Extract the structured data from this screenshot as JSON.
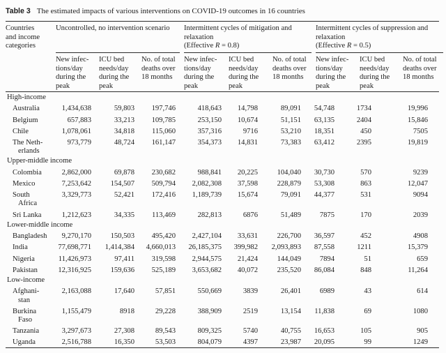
{
  "table": {
    "label": "Table 3",
    "caption": "The estimated impacts of various interventions on COVID-19 outcomes in 16 countries",
    "row_header": {
      "lines": [
        "Countries",
        "and income",
        "categories"
      ]
    },
    "groups": [
      {
        "title_lines": [
          "Uncontrolled, no intervention scenario"
        ],
        "effective": null
      },
      {
        "title_lines": [
          "Intermittent cycles of mitigation and",
          "relaxation"
        ],
        "effective": {
          "prefix": "(Effective ",
          "symbol": "R",
          "suffix": " = 0.8)"
        }
      },
      {
        "title_lines": [
          "Intermittent cycles of suppression and",
          "relaxation"
        ],
        "effective": {
          "prefix": "(Effective ",
          "symbol": "R",
          "suffix": " = 0.5)"
        }
      }
    ],
    "subcolumns": [
      {
        "key": "new-infections",
        "lines": [
          "New infec-",
          "tions/day",
          "during the",
          "peak"
        ]
      },
      {
        "key": "icu-bed-needs",
        "lines": [
          "ICU bed",
          "needs/day",
          "during the",
          "peak"
        ]
      },
      {
        "key": "total-deaths",
        "lines": [
          "No. of total",
          "deaths over",
          "18 months"
        ]
      }
    ],
    "sections": [
      {
        "label": "High-income",
        "rows": [
          {
            "country_lines": [
              "Australia"
            ],
            "values": [
              "1,434,638",
              "59,803",
              "197,746",
              "418,643",
              "14,798",
              "89,091",
              "54,748",
              "1734",
              "19,996"
            ]
          },
          {
            "country_lines": [
              "Belgium"
            ],
            "values": [
              "657,883",
              "33,213",
              "109,785",
              "253,150",
              "10,674",
              "51,151",
              "63,135",
              "2404",
              "15,846"
            ]
          },
          {
            "country_lines": [
              "Chile"
            ],
            "values": [
              "1,078,061",
              "34,818",
              "115,060",
              "357,316",
              "9716",
              "53,210",
              "18,351",
              "450",
              "7505"
            ]
          },
          {
            "country_lines": [
              "The Neth-",
              "erlands"
            ],
            "values": [
              "973,779",
              "48,724",
              "161,147",
              "354,373",
              "14,831",
              "73,383",
              "63,412",
              "2395",
              "19,819"
            ]
          }
        ]
      },
      {
        "label": "Upper-middle income",
        "rows": [
          {
            "country_lines": [
              "Colombia"
            ],
            "values": [
              "2,862,000",
              "69,878",
              "230,682",
              "988,841",
              "20,225",
              "104,040",
              "30,730",
              "570",
              "9239"
            ]
          },
          {
            "country_lines": [
              "Mexico"
            ],
            "values": [
              "7,253,642",
              "154,507",
              "509,794",
              "2,082,308",
              "37,598",
              "228,879",
              "53,308",
              "863",
              "12,047"
            ]
          },
          {
            "country_lines": [
              "South",
              "Africa"
            ],
            "values": [
              "3,329,773",
              "52,421",
              "172,416",
              "1,189,739",
              "15,674",
              "79,091",
              "44,377",
              "531",
              "9094"
            ]
          },
          {
            "country_lines": [
              "Sri Lanka"
            ],
            "values": [
              "1,212,623",
              "34,335",
              "113,469",
              "282,813",
              "6876",
              "51,489",
              "7875",
              "170",
              "2039"
            ]
          }
        ]
      },
      {
        "label": "Lower-middle income",
        "rows": [
          {
            "country_lines": [
              "Bangladesh"
            ],
            "values": [
              "9,270,170",
              "150,503",
              "495,420",
              "2,427,104",
              "33,631",
              "226,700",
              "36,597",
              "452",
              "4908"
            ]
          },
          {
            "country_lines": [
              "India"
            ],
            "values": [
              "77,698,771",
              "1,414,384",
              "4,660,013",
              "26,185,375",
              "399,982",
              "2,093,893",
              "87,558",
              "1211",
              "15,379"
            ]
          },
          {
            "country_lines": [
              "Nigeria"
            ],
            "values": [
              "11,426,973",
              "97,411",
              "319,598",
              "2,944,575",
              "21,424",
              "144,049",
              "7894",
              "51",
              "659"
            ]
          },
          {
            "country_lines": [
              "Pakistan"
            ],
            "values": [
              "12,316,925",
              "159,636",
              "525,189",
              "3,653,682",
              "40,072",
              "235,520",
              "86,084",
              "848",
              "11,264"
            ]
          }
        ]
      },
      {
        "label": "Low-income",
        "rows": [
          {
            "country_lines": [
              "Afghani-",
              "stan"
            ],
            "values": [
              "2,163,088",
              "17,640",
              "57,851",
              "550,669",
              "3839",
              "26,401",
              "6989",
              "43",
              "614"
            ]
          },
          {
            "country_lines": [
              "Burkina",
              "Faso"
            ],
            "values": [
              "1,155,479",
              "8918",
              "29,228",
              "388,909",
              "2519",
              "13,154",
              "11,838",
              "69",
              "1080"
            ]
          },
          {
            "country_lines": [
              "Tanzania"
            ],
            "values": [
              "3,297,673",
              "27,308",
              "89,543",
              "809,325",
              "5740",
              "40,755",
              "16,653",
              "105",
              "905"
            ]
          },
          {
            "country_lines": [
              "Uganda"
            ],
            "values": [
              "2,516,788",
              "16,350",
              "53,503",
              "804,079",
              "4397",
              "23,987",
              "20,095",
              "99",
              "1249"
            ]
          }
        ]
      }
    ]
  }
}
